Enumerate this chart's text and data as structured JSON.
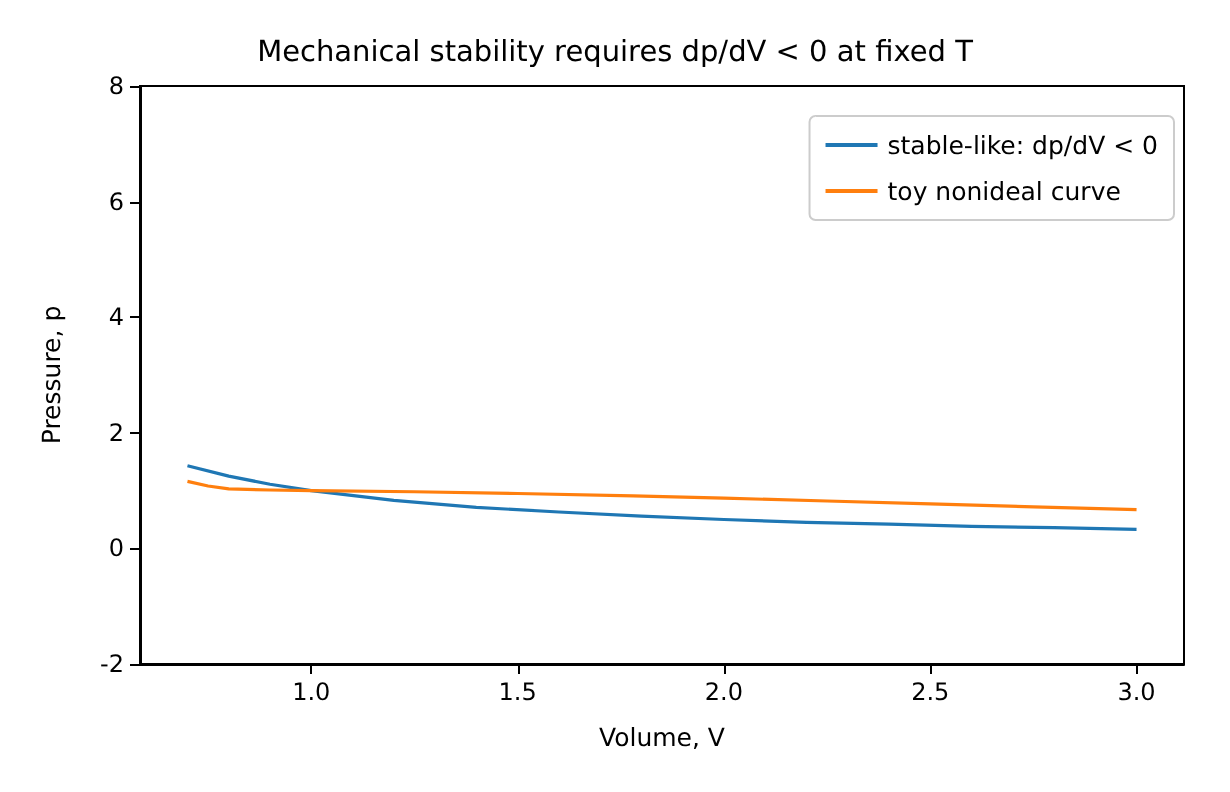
{
  "chart_data": {
    "type": "line",
    "title": "Mechanical stability requires dp/dV < 0 at fixed T",
    "xlabel": "Volume, V",
    "ylabel": "Pressure, p",
    "xlim": [
      0.585,
      3.115
    ],
    "xticks": [
      {
        "value": 1,
        "label": "1.0"
      },
      {
        "value": 1.5,
        "label": "1.5"
      },
      {
        "value": 2,
        "label": "2.0"
      },
      {
        "value": 2.5,
        "label": "2.5"
      },
      {
        "value": 3,
        "label": "3.0"
      }
    ],
    "ylim": [
      -2,
      8
    ],
    "yticks": [
      -2,
      0,
      2,
      4,
      6,
      8
    ],
    "grid": false,
    "legend": "top right",
    "marker": "none",
    "line_style": "solid",
    "series": [
      {
        "name": "stable-like: dp/dV < 0",
        "color": "#1f77b4",
        "x": [
          0.7,
          0.8,
          0.9,
          1.0,
          1.2,
          1.4,
          1.6,
          1.8,
          2.0,
          2.2,
          2.4,
          2.6,
          2.8,
          3.0
        ],
        "values": [
          1.43,
          1.25,
          1.11,
          1.0,
          0.83,
          0.71,
          0.63,
          0.56,
          0.5,
          0.45,
          0.42,
          0.38,
          0.36,
          0.33
        ]
      },
      {
        "name": "toy nonideal curve",
        "color": "#ff7f0e",
        "x": [
          0.7,
          0.75,
          0.8,
          0.9,
          1.0,
          1.25,
          1.5,
          1.78,
          2.0,
          2.25,
          2.5,
          2.75,
          3.0
        ],
        "values": [
          1.16,
          1.08,
          1.03,
          1.01,
          1.0,
          0.98,
          0.95,
          0.91,
          0.87,
          0.82,
          0.77,
          0.72,
          0.67
        ]
      }
    ]
  }
}
